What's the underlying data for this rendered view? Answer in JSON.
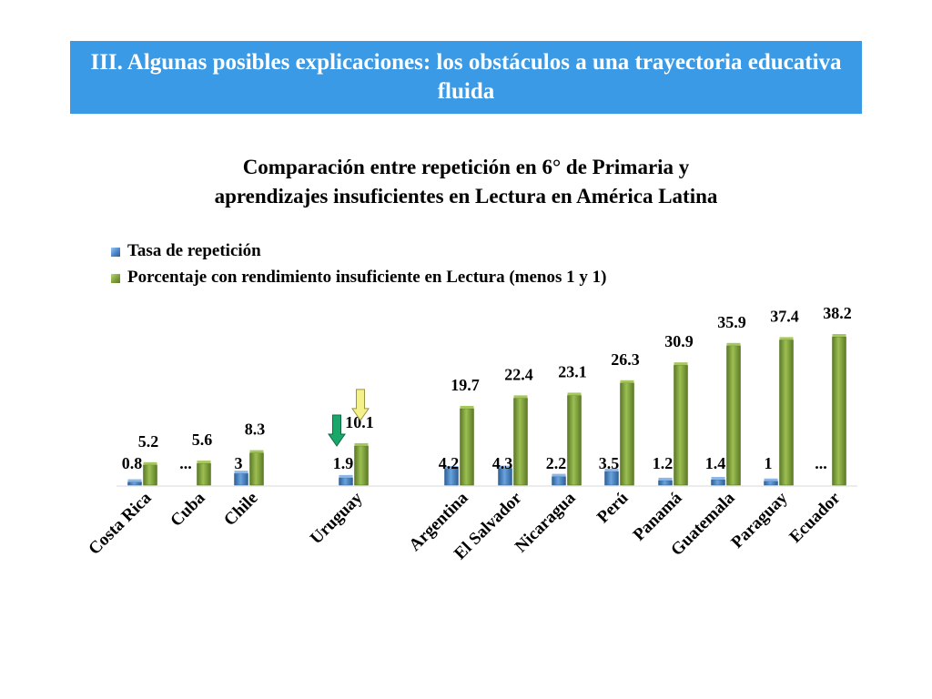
{
  "header": {
    "title": "III. Algunas posibles explicaciones: los obstáculos a una trayectoria educativa fluida"
  },
  "chart_data": {
    "type": "bar",
    "title_lines": [
      "Comparación entre repetición en 6° de Primaria y",
      "aprendizajes insuficientes en Lectura en América Latina"
    ],
    "legend_position": "top-left",
    "grid": false,
    "categories": [
      "Costa Rica",
      "Cuba",
      "Chile",
      "Uruguay",
      "Argentina",
      "El Salvador",
      "Nicaragua",
      "Perú",
      "Panamá",
      "Guatemala",
      "Paraguay",
      "Ecuador"
    ],
    "series": [
      {
        "name": "Tasa de repetición",
        "color": "#4a86c8",
        "values": [
          0.8,
          null,
          3,
          1.9,
          4.2,
          4.3,
          2.2,
          3.5,
          1.2,
          1.4,
          1,
          null
        ],
        "labels": [
          "0.8",
          "...",
          "3",
          "1.9",
          "4.2",
          "4.3",
          "2.2",
          "3.5",
          "1.2",
          "1.4",
          "1",
          "..."
        ]
      },
      {
        "name": "Porcentaje con rendimiento insuficiente en Lectura (menos 1 y 1)",
        "color": "#7fa03a",
        "values": [
          5.2,
          5.6,
          8.3,
          10.1,
          19.7,
          22.4,
          23.1,
          26.3,
          30.9,
          35.9,
          37.4,
          38.2
        ],
        "labels": [
          "5.2",
          "5.6",
          "8.3",
          "10.1",
          "19.7",
          "22.4",
          "23.1",
          "26.3",
          "30.9",
          "35.9",
          "37.4",
          "38.2"
        ]
      }
    ],
    "ylim": [
      0,
      40
    ],
    "annotations": [
      {
        "category": "Uruguay",
        "series": "Tasa de repetición",
        "shape": "arrow-down",
        "color": "#1aa86a"
      },
      {
        "category": "Uruguay",
        "series": "Porcentaje con rendimiento insuficiente en Lectura (menos 1 y 1)",
        "shape": "arrow-down",
        "color": "#f4f08a"
      }
    ]
  }
}
